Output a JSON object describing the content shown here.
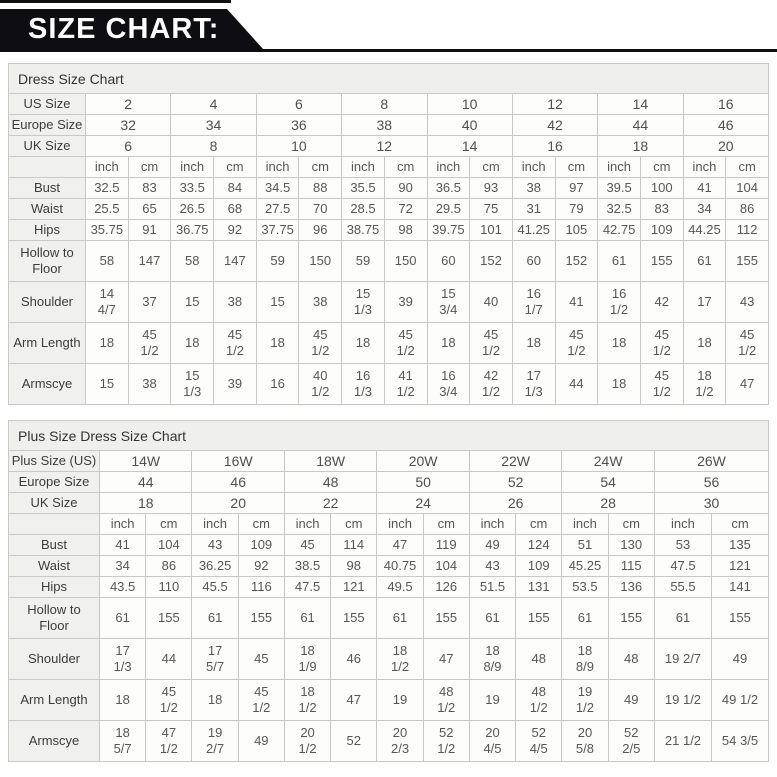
{
  "banner": {
    "title": "SIZE CHART:",
    "bg": "#0d0d12",
    "text_color": "#ffffff"
  },
  "colors": {
    "border": "#c9c9c9",
    "label_bg": "#f0f0ee",
    "title_row_bg": "#efefed",
    "cell_bg": "#fdfdfb",
    "data_text": "#57575b"
  },
  "units": [
    "inch",
    "cm"
  ],
  "tables": [
    {
      "title": "Dress Size Chart",
      "header_rows": [
        {
          "label": "US Size",
          "values": [
            "2",
            "4",
            "6",
            "8",
            "10",
            "12",
            "14",
            "16"
          ]
        },
        {
          "label": "Europe Size",
          "values": [
            "32",
            "34",
            "36",
            "38",
            "40",
            "42",
            "44",
            "46"
          ]
        },
        {
          "label": "UK Size",
          "values": [
            "6",
            "8",
            "10",
            "12",
            "14",
            "16",
            "18",
            "20"
          ]
        }
      ],
      "measurement_rows": [
        {
          "label": "Bust",
          "tall": false,
          "values": [
            "32.5",
            "83",
            "33.5",
            "84",
            "34.5",
            "88",
            "35.5",
            "90",
            "36.5",
            "93",
            "38",
            "97",
            "39.5",
            "100",
            "41",
            "104"
          ]
        },
        {
          "label": "Waist",
          "tall": false,
          "values": [
            "25.5",
            "65",
            "26.5",
            "68",
            "27.5",
            "70",
            "28.5",
            "72",
            "29.5",
            "75",
            "31",
            "79",
            "32.5",
            "83",
            "34",
            "86"
          ]
        },
        {
          "label": "Hips",
          "tall": false,
          "values": [
            "35.75",
            "91",
            "36.75",
            "92",
            "37.75",
            "96",
            "38.75",
            "98",
            "39.75",
            "101",
            "41.25",
            "105",
            "42.75",
            "109",
            "44.25",
            "112"
          ]
        },
        {
          "label": "Hollow to\nFloor",
          "tall": true,
          "values": [
            "58",
            "147",
            "58",
            "147",
            "59",
            "150",
            "59",
            "150",
            "60",
            "152",
            "60",
            "152",
            "61",
            "155",
            "61",
            "155"
          ]
        },
        {
          "label": "Shoulder",
          "tall": true,
          "values": [
            "14\n4/7",
            "37",
            "15",
            "38",
            "15",
            "38",
            "15\n1/3",
            "39",
            "15\n3/4",
            "40",
            "16\n1/7",
            "41",
            "16\n1/2",
            "42",
            "17",
            "43"
          ]
        },
        {
          "label": "Arm Length",
          "tall": true,
          "values": [
            "18",
            "45\n1/2",
            "18",
            "45\n1/2",
            "18",
            "45\n1/2",
            "18",
            "45\n1/2",
            "18",
            "45\n1/2",
            "18",
            "45\n1/2",
            "18",
            "45\n1/2",
            "18",
            "45\n1/2"
          ]
        },
        {
          "label": "Armscye",
          "tall": true,
          "values": [
            "15",
            "38",
            "15\n1/3",
            "39",
            "16",
            "40\n1/2",
            "16\n1/3",
            "41\n1/2",
            "16\n3/4",
            "42\n1/2",
            "17\n1/3",
            "44",
            "18",
            "45\n1/2",
            "18\n1/2",
            "47"
          ]
        }
      ]
    },
    {
      "title": "Plus Size Dress Size Chart",
      "wide_last": true,
      "header_rows": [
        {
          "label": "Plus Size (US)",
          "values": [
            "14W",
            "16W",
            "18W",
            "20W",
            "22W",
            "24W",
            "26W"
          ]
        },
        {
          "label": "Europe Size",
          "values": [
            "44",
            "46",
            "48",
            "50",
            "52",
            "54",
            "56"
          ]
        },
        {
          "label": "UK Size",
          "values": [
            "18",
            "20",
            "22",
            "24",
            "26",
            "28",
            "30"
          ]
        }
      ],
      "measurement_rows": [
        {
          "label": "Bust",
          "tall": false,
          "values": [
            "41",
            "104",
            "43",
            "109",
            "45",
            "114",
            "47",
            "119",
            "49",
            "124",
            "51",
            "130",
            "53",
            "135"
          ]
        },
        {
          "label": "Waist",
          "tall": false,
          "values": [
            "34",
            "86",
            "36.25",
            "92",
            "38.5",
            "98",
            "40.75",
            "104",
            "43",
            "109",
            "45.25",
            "115",
            "47.5",
            "121"
          ]
        },
        {
          "label": "Hips",
          "tall": false,
          "values": [
            "43.5",
            "110",
            "45.5",
            "116",
            "47.5",
            "121",
            "49.5",
            "126",
            "51.5",
            "131",
            "53.5",
            "136",
            "55.5",
            "141"
          ]
        },
        {
          "label": "Hollow to\nFloor",
          "tall": true,
          "values": [
            "61",
            "155",
            "61",
            "155",
            "61",
            "155",
            "61",
            "155",
            "61",
            "155",
            "61",
            "155",
            "61",
            "155"
          ]
        },
        {
          "label": "Shoulder",
          "tall": true,
          "values": [
            "17\n1/3",
            "44",
            "17\n5/7",
            "45",
            "18\n1/9",
            "46",
            "18\n1/2",
            "47",
            "18\n8/9",
            "48",
            "18\n8/9",
            "48",
            "19 2/7",
            "49"
          ]
        },
        {
          "label": "Arm Length",
          "tall": true,
          "values": [
            "18",
            "45\n1/2",
            "18",
            "45\n1/2",
            "18\n1/2",
            "47",
            "19",
            "48\n1/2",
            "19",
            "48\n1/2",
            "19\n1/2",
            "49",
            "19 1/2",
            "49 1/2"
          ]
        },
        {
          "label": "Armscye",
          "tall": true,
          "values": [
            "18\n5/7",
            "47\n1/2",
            "19\n2/7",
            "49",
            "20\n1/2",
            "52",
            "20\n2/3",
            "52\n1/2",
            "20\n4/5",
            "52\n4/5",
            "20\n5/8",
            "52\n2/5",
            "21 1/2",
            "54 3/5"
          ]
        }
      ]
    }
  ]
}
